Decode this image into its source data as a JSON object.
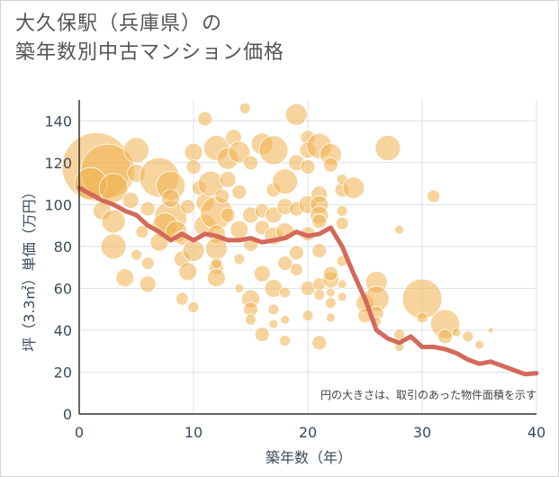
{
  "chart_data": {
    "type": "scatter",
    "title": "大久保駅（兵庫県）の",
    "subtitle": "築年数別中古マンション価格",
    "xlabel": "築年数（年）",
    "ylabel": "坪（3.3㎡）単価（万円）",
    "xlim": [
      0,
      40
    ],
    "ylim": [
      0,
      150
    ],
    "x_ticks": [
      "0",
      "10",
      "20",
      "30",
      "40"
    ],
    "y_ticks": [
      "0",
      "20",
      "40",
      "60",
      "80",
      "100",
      "120",
      "140"
    ],
    "grid": true,
    "note": "円の大きさは、取引のあった物件面積を示す",
    "colors": {
      "bubble": "#f0b14d",
      "line": "#d4695a",
      "grid": "#d9e1ea"
    },
    "series": [
      {
        "kind": "line",
        "x": [
          0,
          1,
          2,
          3,
          4,
          5,
          6,
          7,
          8,
          9,
          10,
          11,
          12,
          13,
          14,
          15,
          16,
          17,
          18,
          19,
          20,
          21,
          22,
          23,
          24,
          25,
          26,
          27,
          28,
          29,
          30,
          31,
          32,
          33,
          34,
          35,
          36,
          37,
          38,
          39,
          40
        ],
        "y": [
          108,
          105,
          102,
          100,
          97,
          95,
          90,
          87,
          83,
          86,
          83,
          86,
          85,
          83,
          83,
          84,
          82,
          83,
          84,
          87,
          85,
          86,
          89,
          80,
          67,
          55,
          40,
          36,
          34,
          37,
          32,
          32,
          31,
          29,
          26,
          24,
          25,
          23,
          21,
          19,
          19.5
        ]
      },
      {
        "kind": "bubbles",
        "points": [
          [
            1.5,
            118,
            38
          ],
          [
            2.5,
            116,
            30
          ],
          [
            1,
            110,
            18
          ],
          [
            3,
            108,
            16
          ],
          [
            2,
            97,
            10
          ],
          [
            3,
            92,
            13
          ],
          [
            3,
            80,
            14
          ],
          [
            4,
            65,
            10
          ],
          [
            5,
            126,
            14
          ],
          [
            5,
            115,
            10
          ],
          [
            4.5,
            102,
            9
          ],
          [
            6,
            98,
            8
          ],
          [
            5.5,
            87,
            7
          ],
          [
            6,
            62,
            9
          ],
          [
            6,
            72,
            7
          ],
          [
            5,
            76,
            6
          ],
          [
            7,
            113,
            22
          ],
          [
            8,
            109,
            16
          ],
          [
            8,
            94,
            18
          ],
          [
            7.5,
            90,
            14
          ],
          [
            8,
            103,
            10
          ],
          [
            8.5,
            87,
            12
          ],
          [
            7,
            82,
            10
          ],
          [
            9,
            74,
            9
          ],
          [
            9,
            84,
            8
          ],
          [
            9.5,
            99,
            8
          ],
          [
            10,
            125,
            10
          ],
          [
            10,
            118,
            8
          ],
          [
            10,
            78,
            12
          ],
          [
            9.5,
            68,
            10
          ],
          [
            9,
            55,
            7
          ],
          [
            10,
            51,
            6
          ],
          [
            10.5,
            108,
            8
          ],
          [
            11,
            141,
            8
          ],
          [
            11,
            90,
            12
          ],
          [
            11,
            101,
            10
          ],
          [
            11.5,
            110,
            14
          ],
          [
            12,
            96,
            18
          ],
          [
            12,
            127,
            14
          ],
          [
            12,
            86,
            10
          ],
          [
            12,
            79,
            12
          ],
          [
            12,
            70,
            8
          ],
          [
            12,
            65,
            10
          ],
          [
            12,
            72,
            6
          ],
          [
            12.5,
            104,
            8
          ],
          [
            13,
            122,
            12
          ],
          [
            13,
            112,
            9
          ],
          [
            13,
            95,
            8
          ],
          [
            13.5,
            132,
            9
          ],
          [
            14,
            125,
            12
          ],
          [
            14,
            106,
            8
          ],
          [
            14,
            88,
            10
          ],
          [
            14,
            74,
            6
          ],
          [
            14,
            60,
            5
          ],
          [
            14.5,
            146,
            6
          ],
          [
            15,
            95,
            9
          ],
          [
            15,
            120,
            8
          ],
          [
            15,
            81,
            8
          ],
          [
            15,
            55,
            10
          ],
          [
            15,
            50,
            8
          ],
          [
            15,
            45,
            6
          ],
          [
            16,
            129,
            12
          ],
          [
            16,
            97,
            8
          ],
          [
            16,
            89,
            8
          ],
          [
            16,
            67,
            9
          ],
          [
            16,
            38,
            8
          ],
          [
            17,
            126,
            16
          ],
          [
            17,
            107,
            8
          ],
          [
            17,
            95,
            9
          ],
          [
            17,
            85,
            10
          ],
          [
            17,
            60,
            10
          ],
          [
            17,
            50,
            6
          ],
          [
            17,
            43,
            5
          ],
          [
            18,
            111,
            14
          ],
          [
            18,
            99,
            9
          ],
          [
            18,
            87,
            10
          ],
          [
            18,
            72,
            8
          ],
          [
            18,
            58,
            6
          ],
          [
            18,
            45,
            5
          ],
          [
            18,
            35,
            6
          ],
          [
            19,
            143,
            12
          ],
          [
            19,
            120,
            9
          ],
          [
            19,
            98,
            8
          ],
          [
            19,
            77,
            8
          ],
          [
            19,
            69,
            7
          ],
          [
            20,
            132,
            8
          ],
          [
            20,
            126,
            9
          ],
          [
            20,
            118,
            8
          ],
          [
            20,
            100,
            10
          ],
          [
            20,
            86,
            8
          ],
          [
            20,
            60,
            8
          ],
          [
            20,
            47,
            6
          ],
          [
            21,
            128,
            14
          ],
          [
            21,
            105,
            9
          ],
          [
            21,
            100,
            10
          ],
          [
            21,
            95,
            10
          ],
          [
            21,
            92,
            8
          ],
          [
            21,
            78,
            8
          ],
          [
            21,
            62,
            7
          ],
          [
            21,
            57,
            6
          ],
          [
            21,
            34,
            8
          ],
          [
            22,
            124,
            12
          ],
          [
            22,
            119,
            8
          ],
          [
            22,
            64,
            9
          ],
          [
            22,
            67,
            8
          ],
          [
            22,
            58,
            5
          ],
          [
            22,
            53,
            6
          ],
          [
            22,
            46,
            5
          ],
          [
            23,
            107,
            8
          ],
          [
            23,
            112,
            6
          ],
          [
            23,
            97,
            6
          ],
          [
            23,
            91,
            7
          ],
          [
            23,
            73,
            6
          ],
          [
            23,
            62,
            5
          ],
          [
            23,
            56,
            5
          ],
          [
            24,
            108,
            12
          ],
          [
            25,
            53,
            10
          ],
          [
            25,
            47,
            8
          ],
          [
            26,
            63,
            12
          ],
          [
            26,
            55,
            14
          ],
          [
            26,
            48,
            8
          ],
          [
            26,
            44,
            5
          ],
          [
            27,
            127,
            14
          ],
          [
            28,
            88,
            5
          ],
          [
            28,
            38,
            6
          ],
          [
            28,
            32,
            5
          ],
          [
            30,
            55,
            22
          ],
          [
            30,
            46,
            6
          ],
          [
            31,
            104,
            7
          ],
          [
            32,
            43,
            16
          ],
          [
            32,
            37,
            8
          ],
          [
            33,
            39,
            5
          ],
          [
            34,
            37,
            6
          ],
          [
            35,
            33,
            5
          ],
          [
            36,
            40,
            3
          ]
        ]
      }
    ]
  }
}
